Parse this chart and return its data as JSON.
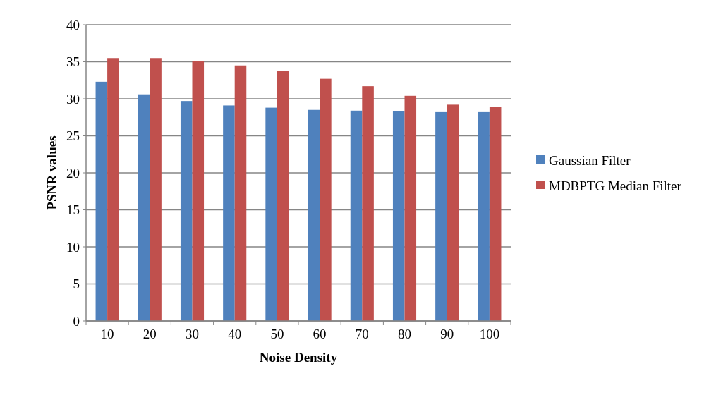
{
  "chart_data": {
    "type": "bar",
    "xlabel": "Noise Density",
    "ylabel": "PSNR values",
    "categories": [
      "10",
      "20",
      "30",
      "40",
      "50",
      "60",
      "70",
      "80",
      "90",
      "100"
    ],
    "series": [
      {
        "name": "Gaussian Filter",
        "color": "#4f81bd",
        "values": [
          32.3,
          30.6,
          29.7,
          29.1,
          28.8,
          28.5,
          28.4,
          28.3,
          28.2,
          28.2
        ]
      },
      {
        "name": "MDBPTG Median Filter",
        "color": "#c0504d",
        "values": [
          35.5,
          35.5,
          35.1,
          34.5,
          33.8,
          32.7,
          31.7,
          30.4,
          29.2,
          28.9
        ]
      }
    ],
    "ylim": [
      0,
      40
    ],
    "yticks": [
      0,
      5,
      10,
      15,
      20,
      25,
      30,
      35,
      40
    ],
    "grid": "y",
    "legend": "right"
  }
}
